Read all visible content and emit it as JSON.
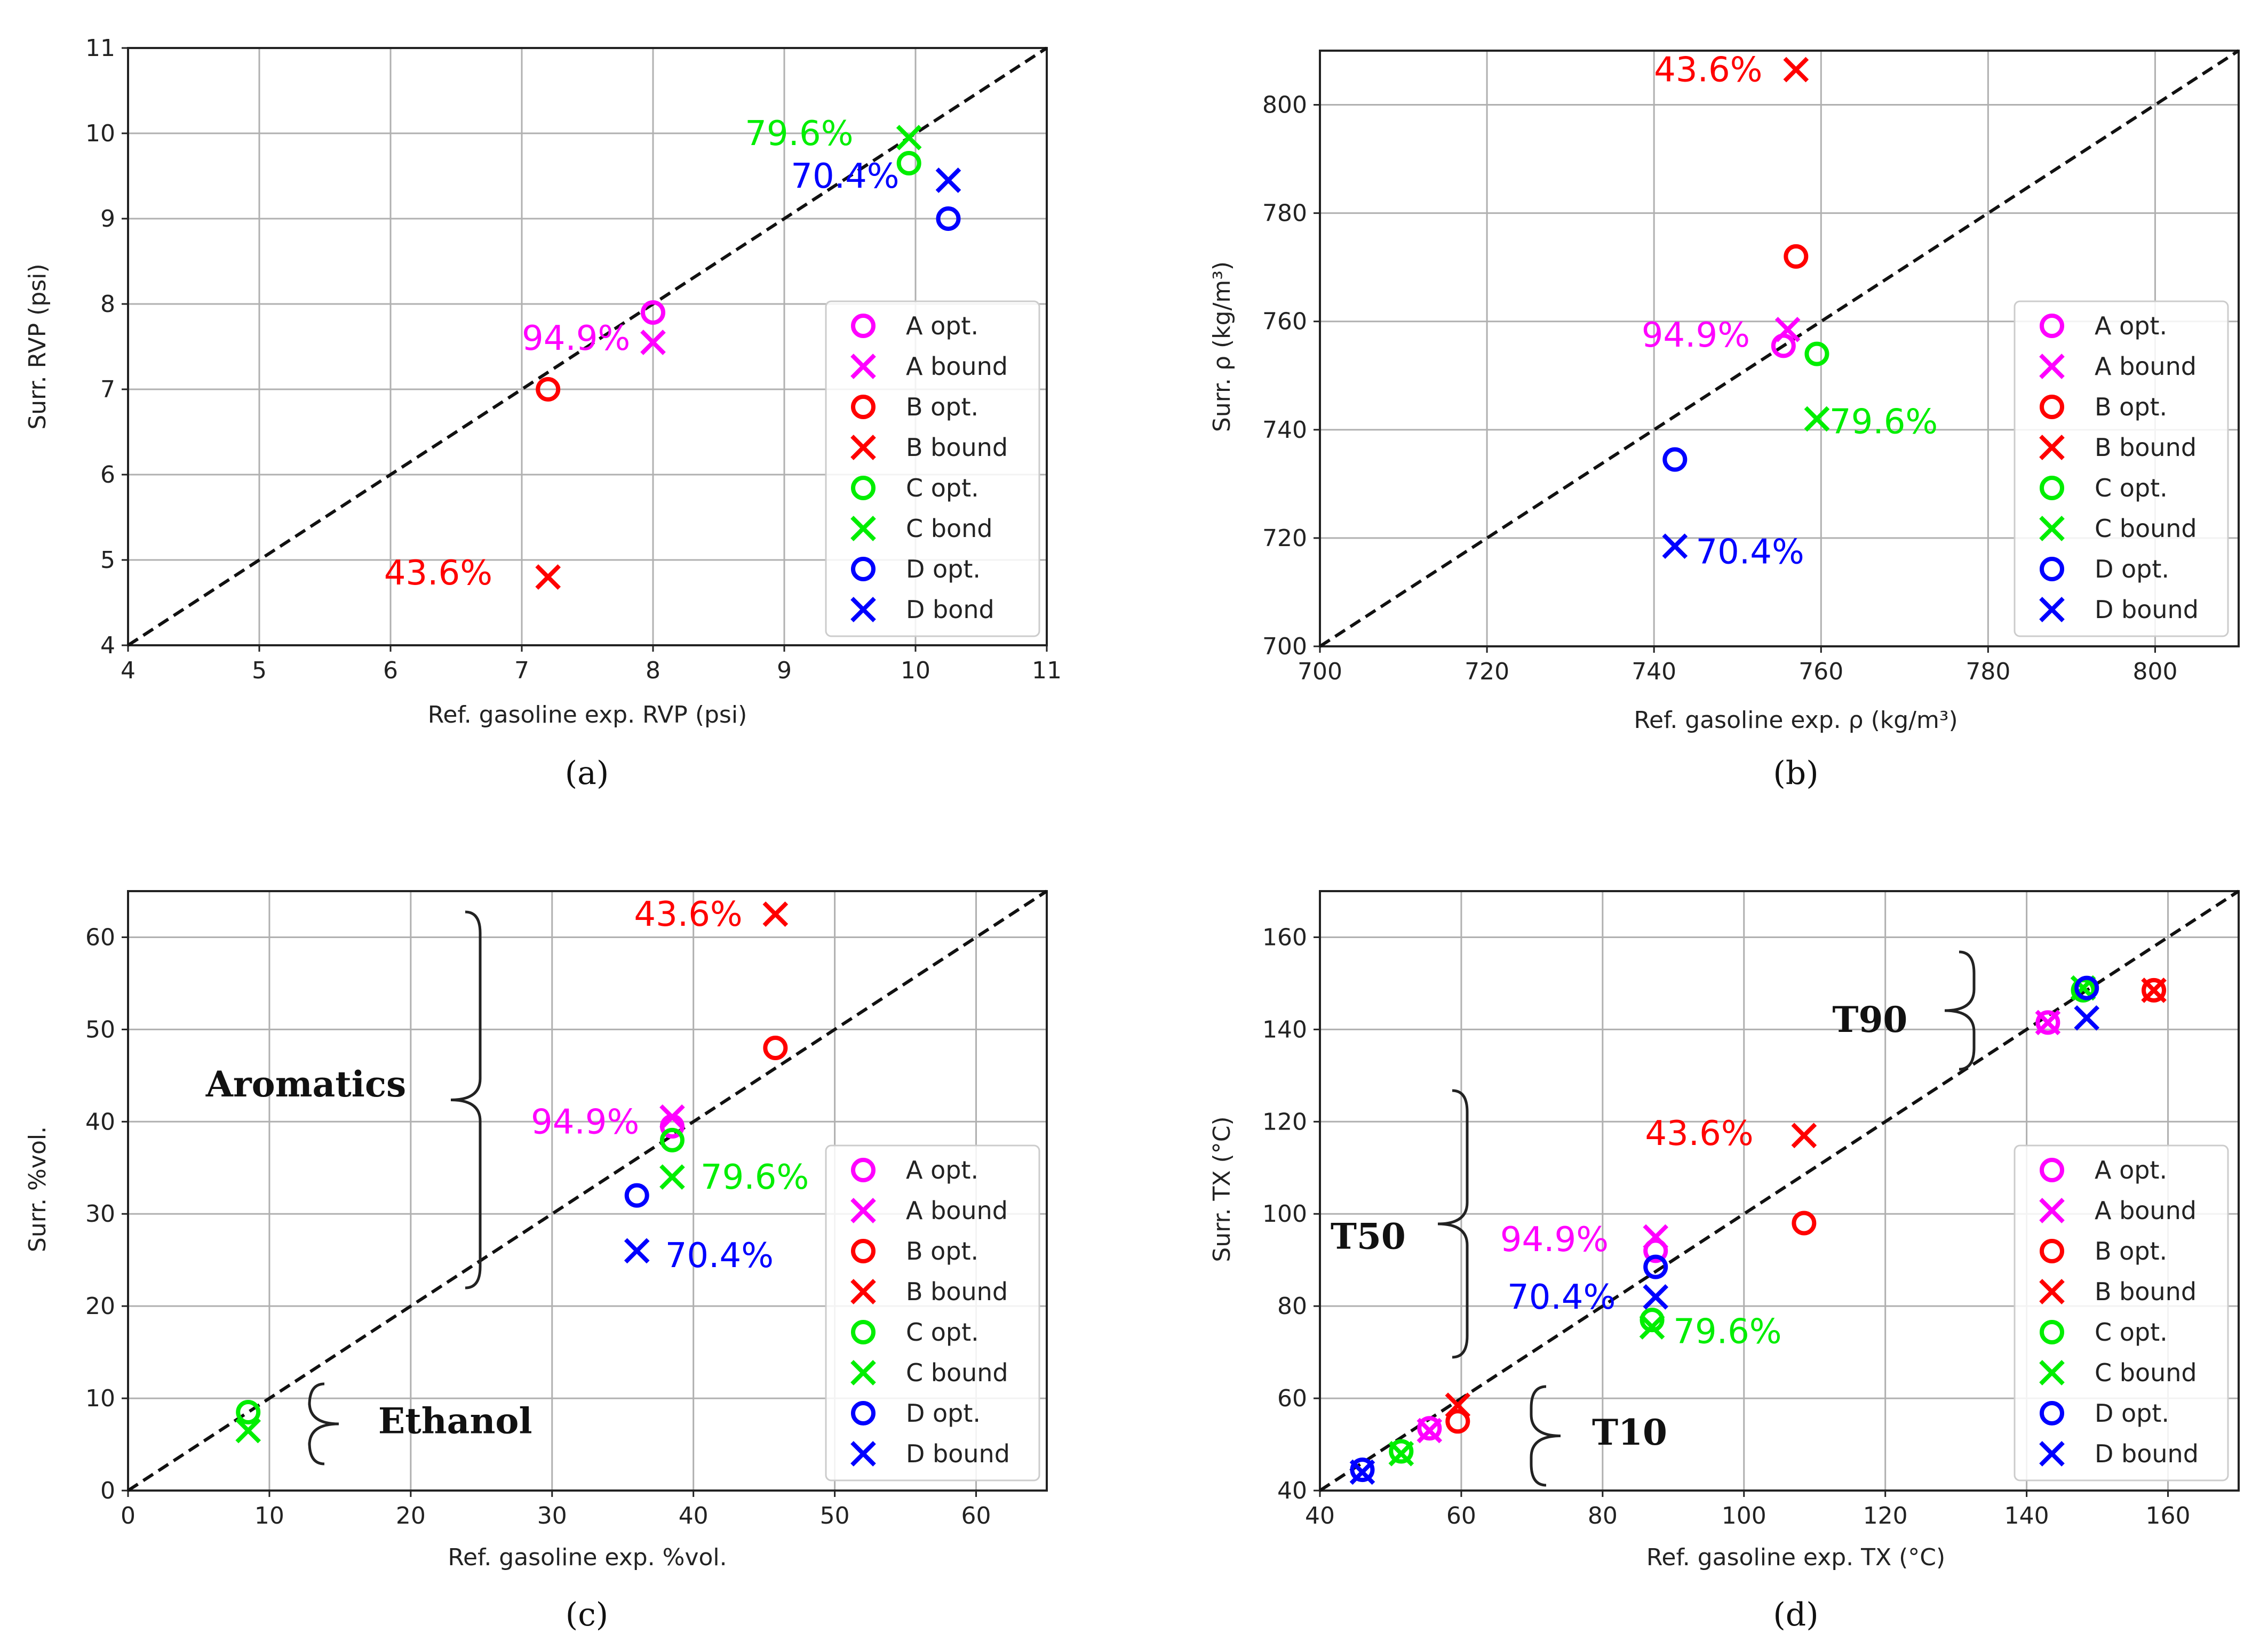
{
  "chart_data": [
    {
      "type": "scatter",
      "caption": "(a)",
      "xlabel": "Ref. gasoline exp. RVP (psi)",
      "ylabel": "Surr. RVP (psi)",
      "xlim": [
        4,
        11
      ],
      "ylim": [
        4,
        11
      ],
      "xticks": [
        "4",
        "5",
        "6",
        "7",
        "8",
        "9",
        "10",
        "11"
      ],
      "yticks": [
        "4",
        "5",
        "6",
        "7",
        "8",
        "9",
        "10",
        "11"
      ],
      "grid": true,
      "legend_position": "lower-right",
      "legend": [
        "A opt.",
        "A bound",
        "B opt.",
        "B bound",
        "C opt.",
        "C bond",
        "D opt.",
        "D bond"
      ],
      "series": [
        {
          "name": "A opt.",
          "marker": "o",
          "color": "#ff00ff",
          "points": [
            [
              8.0,
              7.9
            ]
          ]
        },
        {
          "name": "A bound",
          "marker": "x",
          "color": "#ff00ff",
          "points": [
            [
              8.0,
              7.55
            ]
          ]
        },
        {
          "name": "B opt.",
          "marker": "o",
          "color": "#ff0000",
          "points": [
            [
              7.2,
              7.0
            ]
          ]
        },
        {
          "name": "B bound",
          "marker": "x",
          "color": "#ff0000",
          "points": [
            [
              7.2,
              4.8
            ]
          ]
        },
        {
          "name": "C opt.",
          "marker": "o",
          "color": "#00ee00",
          "points": [
            [
              9.95,
              9.65
            ]
          ]
        },
        {
          "name": "C bond",
          "marker": "x",
          "color": "#00ee00",
          "points": [
            [
              9.95,
              9.95
            ]
          ]
        },
        {
          "name": "D opt.",
          "marker": "o",
          "color": "#0000ff",
          "points": [
            [
              10.25,
              9.0
            ]
          ]
        },
        {
          "name": "D bond",
          "marker": "x",
          "color": "#0000ff",
          "points": [
            [
              10.25,
              9.45
            ]
          ]
        }
      ],
      "annotations": [
        {
          "text": "94.9%",
          "color": "#ff00ff",
          "x": 7.0,
          "y": 7.6
        },
        {
          "text": "43.6%",
          "color": "#ff0000",
          "x": 5.95,
          "y": 4.85
        },
        {
          "text": "79.6%",
          "color": "#00ee00",
          "x": 8.7,
          "y": 10.0
        },
        {
          "text": "70.4%",
          "color": "#0000ff",
          "x": 9.05,
          "y": 9.5
        }
      ]
    },
    {
      "type": "scatter",
      "caption": "(b)",
      "xlabel": "Ref. gasoline exp. ρ (kg/m³)",
      "ylabel": "Surr. ρ (kg/m³)",
      "xlim": [
        700,
        810
      ],
      "ylim": [
        700,
        810
      ],
      "xticks": [
        "700",
        "720",
        "740",
        "760",
        "780",
        "800"
      ],
      "yticks": [
        "700",
        "720",
        "740",
        "760",
        "780",
        "800"
      ],
      "grid": true,
      "legend_position": "lower-right",
      "legend": [
        "A opt.",
        "A bound",
        "B opt.",
        "B bound",
        "C opt.",
        "C bound",
        "D opt.",
        "D bound"
      ],
      "series": [
        {
          "name": "A opt.",
          "marker": "o",
          "color": "#ff00ff",
          "points": [
            [
              755.5,
              755.5
            ]
          ]
        },
        {
          "name": "A bound",
          "marker": "x",
          "color": "#ff00ff",
          "points": [
            [
              756,
              758.5
            ]
          ]
        },
        {
          "name": "B opt.",
          "marker": "o",
          "color": "#ff0000",
          "points": [
            [
              757,
              772
            ]
          ]
        },
        {
          "name": "B bound",
          "marker": "x",
          "color": "#ff0000",
          "points": [
            [
              757,
              806.5
            ]
          ]
        },
        {
          "name": "C opt.",
          "marker": "o",
          "color": "#00ee00",
          "points": [
            [
              759.5,
              754
            ]
          ]
        },
        {
          "name": "C bound",
          "marker": "x",
          "color": "#00ee00",
          "points": [
            [
              759.5,
              742
            ]
          ]
        },
        {
          "name": "D opt.",
          "marker": "o",
          "color": "#0000ff",
          "points": [
            [
              742.5,
              734.5
            ]
          ]
        },
        {
          "name": "D bound",
          "marker": "x",
          "color": "#0000ff",
          "points": [
            [
              742.5,
              718.5
            ]
          ]
        }
      ],
      "annotations": [
        {
          "text": "94.9%",
          "color": "#ff00ff",
          "x": 738.5,
          "y": 757.5
        },
        {
          "text": "43.6%",
          "color": "#ff0000",
          "x": 740,
          "y": 806.5
        },
        {
          "text": "79.6%",
          "color": "#00ee00",
          "x": 761,
          "y": 741.5
        },
        {
          "text": "70.4%",
          "color": "#0000ff",
          "x": 745,
          "y": 717.5
        }
      ]
    },
    {
      "type": "scatter",
      "caption": "(c)",
      "xlabel": "Ref. gasoline exp. %vol.",
      "ylabel": "Surr. %vol.",
      "xlim": [
        0,
        65
      ],
      "ylim": [
        0,
        65
      ],
      "xticks": [
        "0",
        "10",
        "20",
        "30",
        "40",
        "50",
        "60"
      ],
      "yticks": [
        "0",
        "10",
        "20",
        "30",
        "40",
        "50",
        "60"
      ],
      "grid": true,
      "legend_position": "lower-right",
      "legend": [
        "A opt.",
        "A bound",
        "B opt.",
        "B bound",
        "C opt.",
        "C bound",
        "D opt.",
        "D bound"
      ],
      "series": [
        {
          "name": "A opt.",
          "marker": "o",
          "color": "#ff00ff",
          "points": [
            [
              38.5,
              39.5
            ]
          ]
        },
        {
          "name": "A bound",
          "marker": "x",
          "color": "#ff00ff",
          "points": [
            [
              38.5,
              40.5
            ]
          ]
        },
        {
          "name": "B opt.",
          "marker": "o",
          "color": "#ff0000",
          "points": [
            [
              45.8,
              48
            ]
          ]
        },
        {
          "name": "B bound",
          "marker": "x",
          "color": "#ff0000",
          "points": [
            [
              45.8,
              62.5
            ]
          ]
        },
        {
          "name": "C opt.",
          "marker": "o",
          "color": "#00ee00",
          "points": [
            [
              38.5,
              38
            ],
            [
              8.5,
              8.5
            ]
          ]
        },
        {
          "name": "C bound",
          "marker": "x",
          "color": "#00ee00",
          "points": [
            [
              38.5,
              34
            ],
            [
              8.5,
              6.5
            ]
          ]
        },
        {
          "name": "D opt.",
          "marker": "o",
          "color": "#0000ff",
          "points": [
            [
              36,
              32
            ]
          ]
        },
        {
          "name": "D bound",
          "marker": "x",
          "color": "#0000ff",
          "points": [
            [
              36,
              26
            ]
          ]
        }
      ],
      "annotations": [
        {
          "text": "94.9%",
          "color": "#ff00ff",
          "x": 28.5,
          "y": 40
        },
        {
          "text": "43.6%",
          "color": "#ff0000",
          "x": 35.8,
          "y": 62.5
        },
        {
          "text": "79.6%",
          "color": "#00ee00",
          "x": 40.5,
          "y": 34
        },
        {
          "text": "70.4%",
          "color": "#0000ff",
          "x": 38,
          "y": 25.5
        }
      ],
      "group_labels": [
        {
          "text": "Aromatics",
          "x": 5.5,
          "y": 44
        },
        {
          "text": "Ethanol",
          "x": 17.7,
          "y": 7.5
        }
      ]
    },
    {
      "type": "scatter",
      "caption": "(d)",
      "xlabel": "Ref. gasoline exp. TX (°C)",
      "ylabel": "Surr. TX (°C)",
      "xlim": [
        40,
        170
      ],
      "ylim": [
        40,
        170
      ],
      "xticks": [
        "40",
        "60",
        "80",
        "100",
        "120",
        "140",
        "160"
      ],
      "yticks": [
        "40",
        "60",
        "80",
        "100",
        "120",
        "140",
        "160"
      ],
      "grid": true,
      "legend_position": "lower-right",
      "legend": [
        "A opt.",
        "A bound",
        "B opt.",
        "B bound",
        "C opt.",
        "C bound",
        "D opt.",
        "D bound"
      ],
      "series": [
        {
          "name": "A opt.",
          "marker": "o",
          "color": "#ff00ff",
          "points": [
            [
              55.5,
              53.5
            ],
            [
              87.5,
              92
            ],
            [
              143,
              141.5
            ]
          ]
        },
        {
          "name": "A bound",
          "marker": "x",
          "color": "#ff00ff",
          "points": [
            [
              55.5,
              53
            ],
            [
              87.5,
              95
            ],
            [
              143,
              141.5
            ]
          ]
        },
        {
          "name": "B opt.",
          "marker": "o",
          "color": "#ff0000",
          "points": [
            [
              59.5,
              55
            ],
            [
              108.5,
              98
            ],
            [
              158,
              148.5
            ]
          ]
        },
        {
          "name": "B bound",
          "marker": "x",
          "color": "#ff0000",
          "points": [
            [
              59.5,
              58.5
            ],
            [
              108.5,
              117
            ],
            [
              158,
              148.5
            ]
          ]
        },
        {
          "name": "C opt.",
          "marker": "o",
          "color": "#00ee00",
          "points": [
            [
              51.5,
              48.5
            ],
            [
              87,
              77
            ],
            [
              148,
              148.5
            ]
          ]
        },
        {
          "name": "C bound",
          "marker": "x",
          "color": "#00ee00",
          "points": [
            [
              51.5,
              48
            ],
            [
              87,
              75.5
            ],
            [
              148,
              149
            ]
          ]
        },
        {
          "name": "D opt.",
          "marker": "o",
          "color": "#0000ff",
          "points": [
            [
              46,
              44.5
            ],
            [
              87.5,
              88.5
            ],
            [
              148.5,
              149
            ]
          ]
        },
        {
          "name": "D bound",
          "marker": "x",
          "color": "#0000ff",
          "points": [
            [
              46,
              44
            ],
            [
              87.5,
              82
            ],
            [
              148.5,
              142.5
            ]
          ]
        }
      ],
      "annotations": [
        {
          "text": "94.9%",
          "color": "#ff00ff",
          "x": 65.5,
          "y": 94.5
        },
        {
          "text": "43.6%",
          "color": "#ff0000",
          "x": 86,
          "y": 117.5
        },
        {
          "text": "79.6%",
          "color": "#00ee00",
          "x": 90,
          "y": 74.5
        },
        {
          "text": "70.4%",
          "color": "#0000ff",
          "x": 66.5,
          "y": 82
        }
      ],
      "group_labels": [
        {
          "text": "T90",
          "x": 112.5,
          "y": 142
        },
        {
          "text": "T50",
          "x": 41.5,
          "y": 95
        },
        {
          "text": "T10",
          "x": 78.5,
          "y": 52.5
        }
      ]
    }
  ]
}
